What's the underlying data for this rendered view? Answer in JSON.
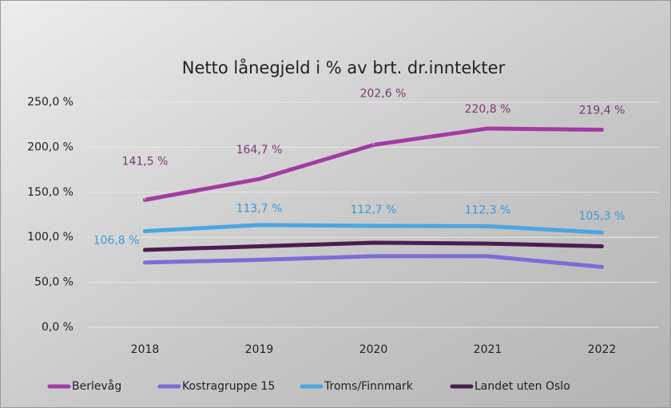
{
  "chart_data": {
    "type": "line",
    "title": "Netto lånegjeld i % av brt. dr.inntekter",
    "categories": [
      "2018",
      "2019",
      "2020",
      "2021",
      "2022"
    ],
    "series": [
      {
        "name": "Berlevåg",
        "color": "#a23ba3",
        "values": [
          141.5,
          164.7,
          202.6,
          220.8,
          219.4
        ],
        "value_labels": [
          "141,5 %",
          "164,7 %",
          "202,6 %",
          "220,8 %",
          "219,4 %"
        ],
        "label_color": "#7a3878"
      },
      {
        "name": "Kostragruppe 15",
        "color": "#7c6cd8",
        "values": [
          72,
          75,
          79,
          79,
          67
        ]
      },
      {
        "name": "Troms/Finnmark",
        "color": "#4ba6e3",
        "values": [
          106.8,
          113.7,
          112.7,
          112.3,
          105.3
        ],
        "value_labels": [
          "106,8 %",
          "113,7 %",
          "112,7 %",
          "112,3 %",
          "105,3 %"
        ],
        "label_color": "#3a9ad9"
      },
      {
        "name": "Landet uten Oslo",
        "color": "#4b1d4e",
        "values": [
          86,
          90,
          94,
          93,
          90
        ]
      }
    ],
    "ylim": [
      0,
      250
    ],
    "yticks": [
      {
        "value": 0,
        "label": "0,0 %"
      },
      {
        "value": 50,
        "label": "50,0 %"
      },
      {
        "value": 100,
        "label": "100,0 %"
      },
      {
        "value": 150,
        "label": "150,0 %"
      },
      {
        "value": 200,
        "label": "200,0 %"
      },
      {
        "value": 250,
        "label": "250,0 %"
      }
    ],
    "grid": true,
    "legend": "bottom"
  }
}
